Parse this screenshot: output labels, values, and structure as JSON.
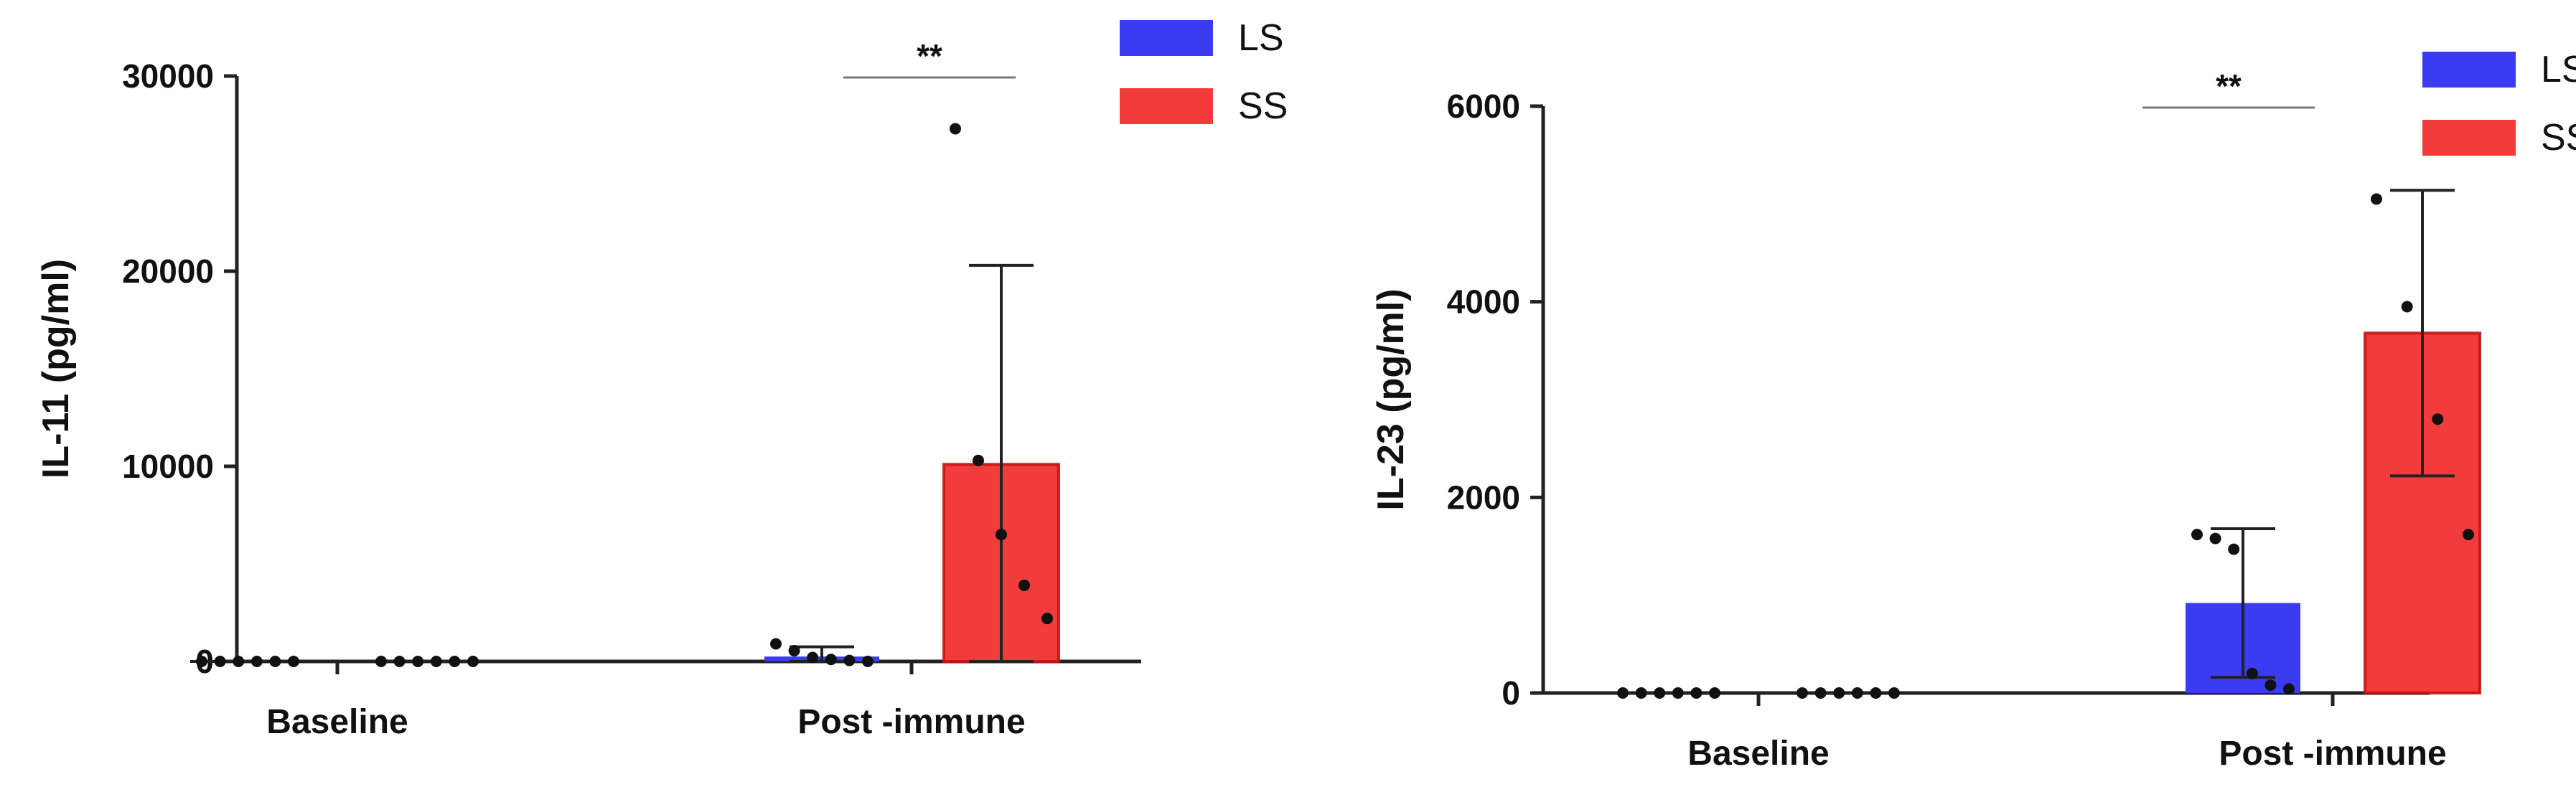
{
  "chart_data": [
    {
      "type": "bar",
      "title": "",
      "xlabel": "",
      "ylabel": "IL-11 (pg/ml)",
      "categories": [
        "Baseline",
        "Post -immune"
      ],
      "ylim": [
        0,
        30000
      ],
      "yticks": [
        "0",
        "10000",
        "20000",
        "30000"
      ],
      "legend_position": "top-right",
      "series": [
        {
          "name": "LS",
          "color": "#3b3bf2",
          "values": [
            0,
            250
          ],
          "error": [
            0,
            500
          ],
          "points": [
            [
              0,
              0,
              0,
              0,
              0,
              0
            ],
            [
              900,
              550,
              200,
              100,
              50,
              0
            ]
          ]
        },
        {
          "name": "SS",
          "color": "#f23b3b",
          "values": [
            0,
            10100
          ],
          "error": [
            0,
            10200
          ],
          "points": [
            [
              0,
              0,
              0,
              0,
              0,
              0
            ],
            [
              27300,
              10300,
              6500,
              3900,
              2200
            ]
          ]
        }
      ],
      "significance": [
        {
          "category": "Post -immune",
          "label": "**"
        }
      ]
    },
    {
      "type": "bar",
      "title": "",
      "xlabel": "",
      "ylabel": "IL-23 (pg/ml)",
      "categories": [
        "Baseline",
        "Post -immune"
      ],
      "ylim": [
        0,
        6000
      ],
      "yticks": [
        "0",
        "2000",
        "4000",
        "6000"
      ],
      "legend_position": "top-right",
      "series": [
        {
          "name": "LS",
          "color": "#3b3bf2",
          "values": [
            0,
            920
          ],
          "error": [
            0,
            760
          ],
          "points": [
            [
              0,
              0,
              0,
              0,
              0,
              0
            ],
            [
              1620,
              1580,
              1470,
              200,
              80,
              40
            ]
          ]
        },
        {
          "name": "SS",
          "color": "#f23b3b",
          "values": [
            0,
            3680
          ],
          "error": [
            0,
            1460
          ],
          "points": [
            [
              0,
              0,
              0,
              0,
              0,
              0
            ],
            [
              5050,
              3950,
              2800,
              1620
            ]
          ]
        }
      ],
      "significance": [
        {
          "category": "Post -immune",
          "label": "**"
        }
      ]
    }
  ]
}
